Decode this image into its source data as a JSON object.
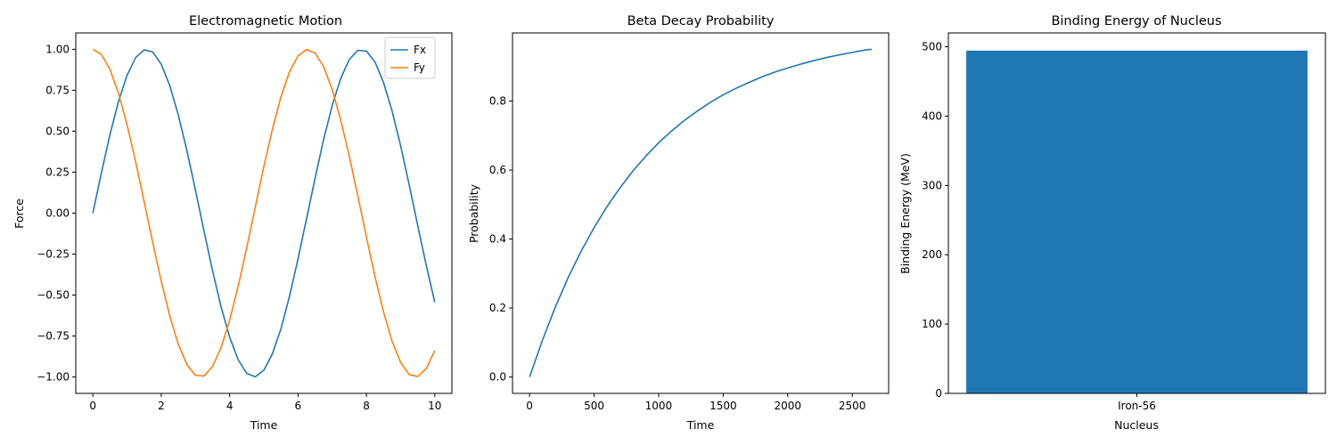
{
  "chart_data": [
    {
      "type": "line",
      "title": "Electromagnetic Motion",
      "xlabel": "Time",
      "ylabel": "Force",
      "xlim": [
        -0.5,
        10.5
      ],
      "ylim": [
        -1.1,
        1.1
      ],
      "xticks": [
        0,
        2,
        4,
        6,
        8,
        10
      ],
      "xtick_labels": [
        "0",
        "2",
        "4",
        "6",
        "8",
        "10"
      ],
      "yticks": [
        -1.0,
        -0.75,
        -0.5,
        -0.25,
        0.0,
        0.25,
        0.5,
        0.75,
        1.0
      ],
      "ytick_labels": [
        "−1.00",
        "−0.75",
        "−0.50",
        "−0.25",
        "0.00",
        "0.25",
        "0.50",
        "0.75",
        "1.00"
      ],
      "legend": "top-right",
      "grid": false,
      "series": [
        {
          "name": "Fx",
          "color": "#1f77b4",
          "x": [
            0,
            0.25,
            0.5,
            0.75,
            1,
            1.25,
            1.5,
            1.75,
            2,
            2.25,
            2.5,
            2.75,
            3,
            3.25,
            3.5,
            3.75,
            4,
            4.25,
            4.5,
            4.75,
            5,
            5.25,
            5.5,
            5.75,
            6,
            6.25,
            6.5,
            6.75,
            7,
            7.25,
            7.5,
            7.75,
            8,
            8.25,
            8.5,
            8.75,
            9,
            9.25,
            9.5,
            9.75,
            10
          ],
          "y": [
            0,
            0.247,
            0.479,
            0.682,
            0.841,
            0.949,
            0.997,
            0.984,
            0.909,
            0.778,
            0.598,
            0.382,
            0.141,
            -0.108,
            -0.351,
            -0.572,
            -0.757,
            -0.895,
            -0.978,
            -0.999,
            -0.959,
            -0.859,
            -0.706,
            -0.508,
            -0.279,
            -0.033,
            0.215,
            0.451,
            0.657,
            0.823,
            0.938,
            0.994,
            0.989,
            0.923,
            0.798,
            0.624,
            0.412,
            0.174,
            -0.075,
            -0.319,
            -0.544
          ]
        },
        {
          "name": "Fy",
          "color": "#ff7f0e",
          "x": [
            0,
            0.25,
            0.5,
            0.75,
            1,
            1.25,
            1.5,
            1.75,
            2,
            2.25,
            2.5,
            2.75,
            3,
            3.25,
            3.5,
            3.75,
            4,
            4.25,
            4.5,
            4.75,
            5,
            5.25,
            5.5,
            5.75,
            6,
            6.25,
            6.5,
            6.75,
            7,
            7.25,
            7.5,
            7.75,
            8,
            8.25,
            8.5,
            8.75,
            9,
            9.25,
            9.5,
            9.75,
            10
          ],
          "y": [
            1,
            0.969,
            0.878,
            0.732,
            0.54,
            0.315,
            0.071,
            -0.178,
            -0.416,
            -0.628,
            -0.801,
            -0.924,
            -0.99,
            -0.994,
            -0.936,
            -0.82,
            -0.654,
            -0.446,
            -0.211,
            0.037,
            0.284,
            0.512,
            0.709,
            0.862,
            0.96,
            0.999,
            0.977,
            0.893,
            0.754,
            0.568,
            0.347,
            0.105,
            -0.146,
            -0.386,
            -0.602,
            -0.781,
            -0.911,
            -0.985,
            -0.997,
            -0.948,
            -0.839
          ]
        }
      ]
    },
    {
      "type": "line",
      "title": "Beta Decay Probability",
      "xlabel": "Time",
      "ylabel": "Probability",
      "xlim": [
        -132,
        2782
      ],
      "ylim": [
        -0.0475,
        0.9975
      ],
      "xticks": [
        0,
        500,
        1000,
        1500,
        2000,
        2500
      ],
      "xtick_labels": [
        "0",
        "500",
        "1000",
        "1500",
        "2000",
        "2500"
      ],
      "yticks": [
        0.0,
        0.2,
        0.4,
        0.6,
        0.8
      ],
      "ytick_labels": [
        "0.0",
        "0.2",
        "0.4",
        "0.6",
        "0.8"
      ],
      "grid": false,
      "series": [
        {
          "color": "#1f77b4",
          "x": [
            0,
            100,
            200,
            300,
            400,
            500,
            600,
            700,
            800,
            900,
            1000,
            1100,
            1200,
            1300,
            1400,
            1500,
            1600,
            1700,
            1800,
            1900,
            2000,
            2100,
            2200,
            2300,
            2400,
            2500,
            2600,
            2650
          ],
          "y": [
            0,
            0.107,
            0.203,
            0.289,
            0.365,
            0.433,
            0.494,
            0.548,
            0.597,
            0.64,
            0.679,
            0.713,
            0.744,
            0.771,
            0.796,
            0.818,
            0.837,
            0.854,
            0.87,
            0.884,
            0.896,
            0.907,
            0.917,
            0.926,
            0.934,
            0.941,
            0.948,
            0.95
          ]
        }
      ]
    },
    {
      "type": "bar",
      "title": "Binding Energy of Nucleus",
      "xlabel": "Nucleus",
      "ylabel": "Binding Energy (MeV)",
      "categories": [
        "Iron-56"
      ],
      "values": [
        494.5
      ],
      "ylim": [
        0,
        520
      ],
      "yticks": [
        0,
        100,
        200,
        300,
        400,
        500
      ],
      "ytick_labels": [
        "0",
        "100",
        "200",
        "300",
        "400",
        "500"
      ],
      "color": "#1f77b4",
      "grid": false
    }
  ]
}
